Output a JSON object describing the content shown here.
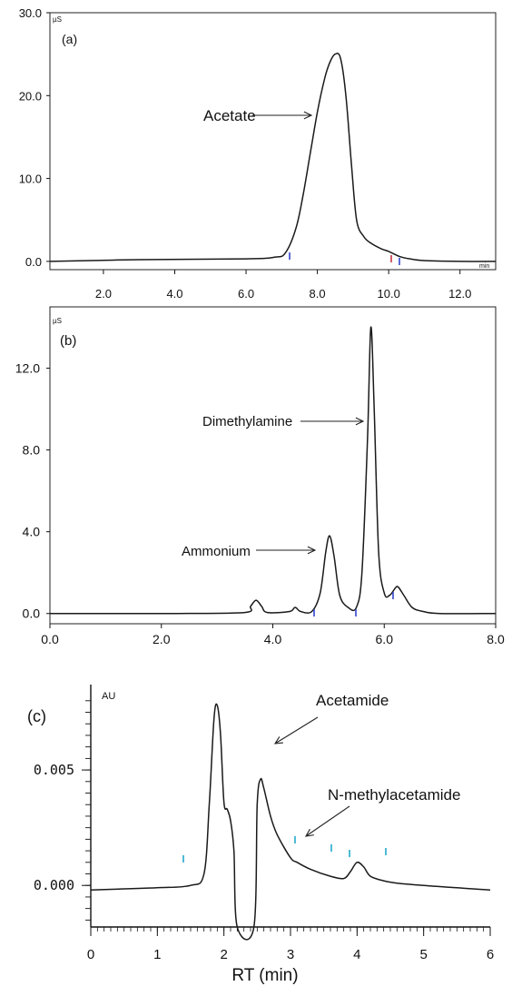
{
  "chart_data": [
    {
      "type": "line",
      "panel_label": "(a)",
      "unit_label": "µS",
      "x_unit_label": "min",
      "xlim": [
        0.5,
        13.0
      ],
      "ylim": [
        -1.0,
        30.0
      ],
      "xticks": [
        "2.0",
        "4.0",
        "6.0",
        "8.0",
        "10.0",
        "12.0"
      ],
      "yticks": [
        "0.0",
        "10.0",
        "20.0",
        "30.0"
      ],
      "annotations": [
        {
          "text": "Acetate",
          "x": 8.4,
          "y": 18.0
        }
      ],
      "series": [
        {
          "x": [
            0.5,
            3.0,
            6.0,
            6.8,
            7.1,
            7.4,
            7.6,
            7.8,
            8.0,
            8.2,
            8.35,
            8.5,
            8.65,
            8.8,
            8.95,
            9.1,
            9.3,
            9.5,
            9.8,
            10.0,
            10.3,
            10.6,
            11.0,
            12.0,
            13.0
          ],
          "y": [
            0.0,
            0.2,
            0.3,
            0.5,
            1.0,
            4.0,
            8.0,
            13.0,
            18.0,
            22.0,
            24.0,
            25.0,
            24.5,
            20.0,
            12.0,
            5.0,
            3.0,
            2.2,
            1.5,
            1.2,
            0.6,
            0.3,
            0.1,
            0.0,
            0.0
          ]
        }
      ]
    },
    {
      "type": "line",
      "panel_label": "(b)",
      "unit_label": "µS",
      "xlim": [
        0.0,
        8.0
      ],
      "ylim": [
        -0.5,
        15.0
      ],
      "xticks": [
        "0.0",
        "2.0",
        "4.0",
        "6.0",
        "8.0"
      ],
      "yticks": [
        "0.0",
        "4.0",
        "8.0",
        "12.0"
      ],
      "annotations": [
        {
          "text": "Dimethylamine",
          "x": 5.55,
          "y": 9.2
        },
        {
          "text": "Ammonium",
          "x": 4.8,
          "y": 3.4
        }
      ],
      "series": [
        {
          "x": [
            0.0,
            2.15,
            2.3,
            3.5,
            3.6,
            3.7,
            3.8,
            3.9,
            4.3,
            4.4,
            4.5,
            4.7,
            4.85,
            4.95,
            5.02,
            5.1,
            5.2,
            5.35,
            5.5,
            5.6,
            5.7,
            5.76,
            5.82,
            5.9,
            6.0,
            6.1,
            6.2,
            6.25,
            6.35,
            6.5,
            6.7,
            7.0,
            8.0
          ],
          "y": [
            0.0,
            0.0,
            0.0,
            0.05,
            0.35,
            0.65,
            0.35,
            0.05,
            0.1,
            0.3,
            0.1,
            0.1,
            1.0,
            3.0,
            3.8,
            2.8,
            0.9,
            0.3,
            0.3,
            2.0,
            8.5,
            14.0,
            10.0,
            3.0,
            1.0,
            0.9,
            1.25,
            1.3,
            0.9,
            0.3,
            0.1,
            0.0,
            0.0
          ]
        }
      ]
    },
    {
      "type": "line",
      "panel_label": "(c)",
      "unit_label": "AU",
      "xlabel": "RT (min)",
      "xlim": [
        0.0,
        6.0
      ],
      "ylim": [
        -0.0018,
        0.0087
      ],
      "xticks": [
        "0",
        "1",
        "2",
        "3",
        "4",
        "5",
        "6"
      ],
      "yticks": [
        "0.000",
        "0.005"
      ],
      "annotations": [
        {
          "text": "Acetamide",
          "x": 2.75,
          "y": 0.0042
        },
        {
          "text": "N-methylacetamide",
          "x": 3.18,
          "y": 0.0008
        }
      ],
      "series": [
        {
          "x": [
            0.0,
            0.5,
            1.0,
            1.5,
            1.7,
            1.78,
            1.85,
            1.9,
            1.95,
            2.0,
            2.05,
            2.1,
            2.15,
            2.2,
            2.45,
            2.5,
            2.55,
            2.6,
            2.7,
            2.8,
            3.0,
            3.1,
            3.3,
            3.6,
            3.8,
            3.9,
            4.0,
            4.1,
            4.2,
            4.4,
            4.6,
            5.0,
            5.5,
            6.0
          ],
          "y": [
            -0.0002,
            -0.00015,
            -0.0001,
            0.0,
            0.0005,
            0.0035,
            0.0072,
            0.0078,
            0.0065,
            0.0036,
            0.0033,
            0.0028,
            0.0015,
            -0.0018,
            -0.0018,
            0.0035,
            0.0046,
            0.0042,
            0.003,
            0.0022,
            0.0012,
            0.001,
            0.0007,
            0.0004,
            0.0003,
            0.0006,
            0.001,
            0.0008,
            0.0004,
            0.0002,
            0.0001,
            0.0,
            -0.0001,
            -0.0002
          ]
        }
      ]
    }
  ]
}
